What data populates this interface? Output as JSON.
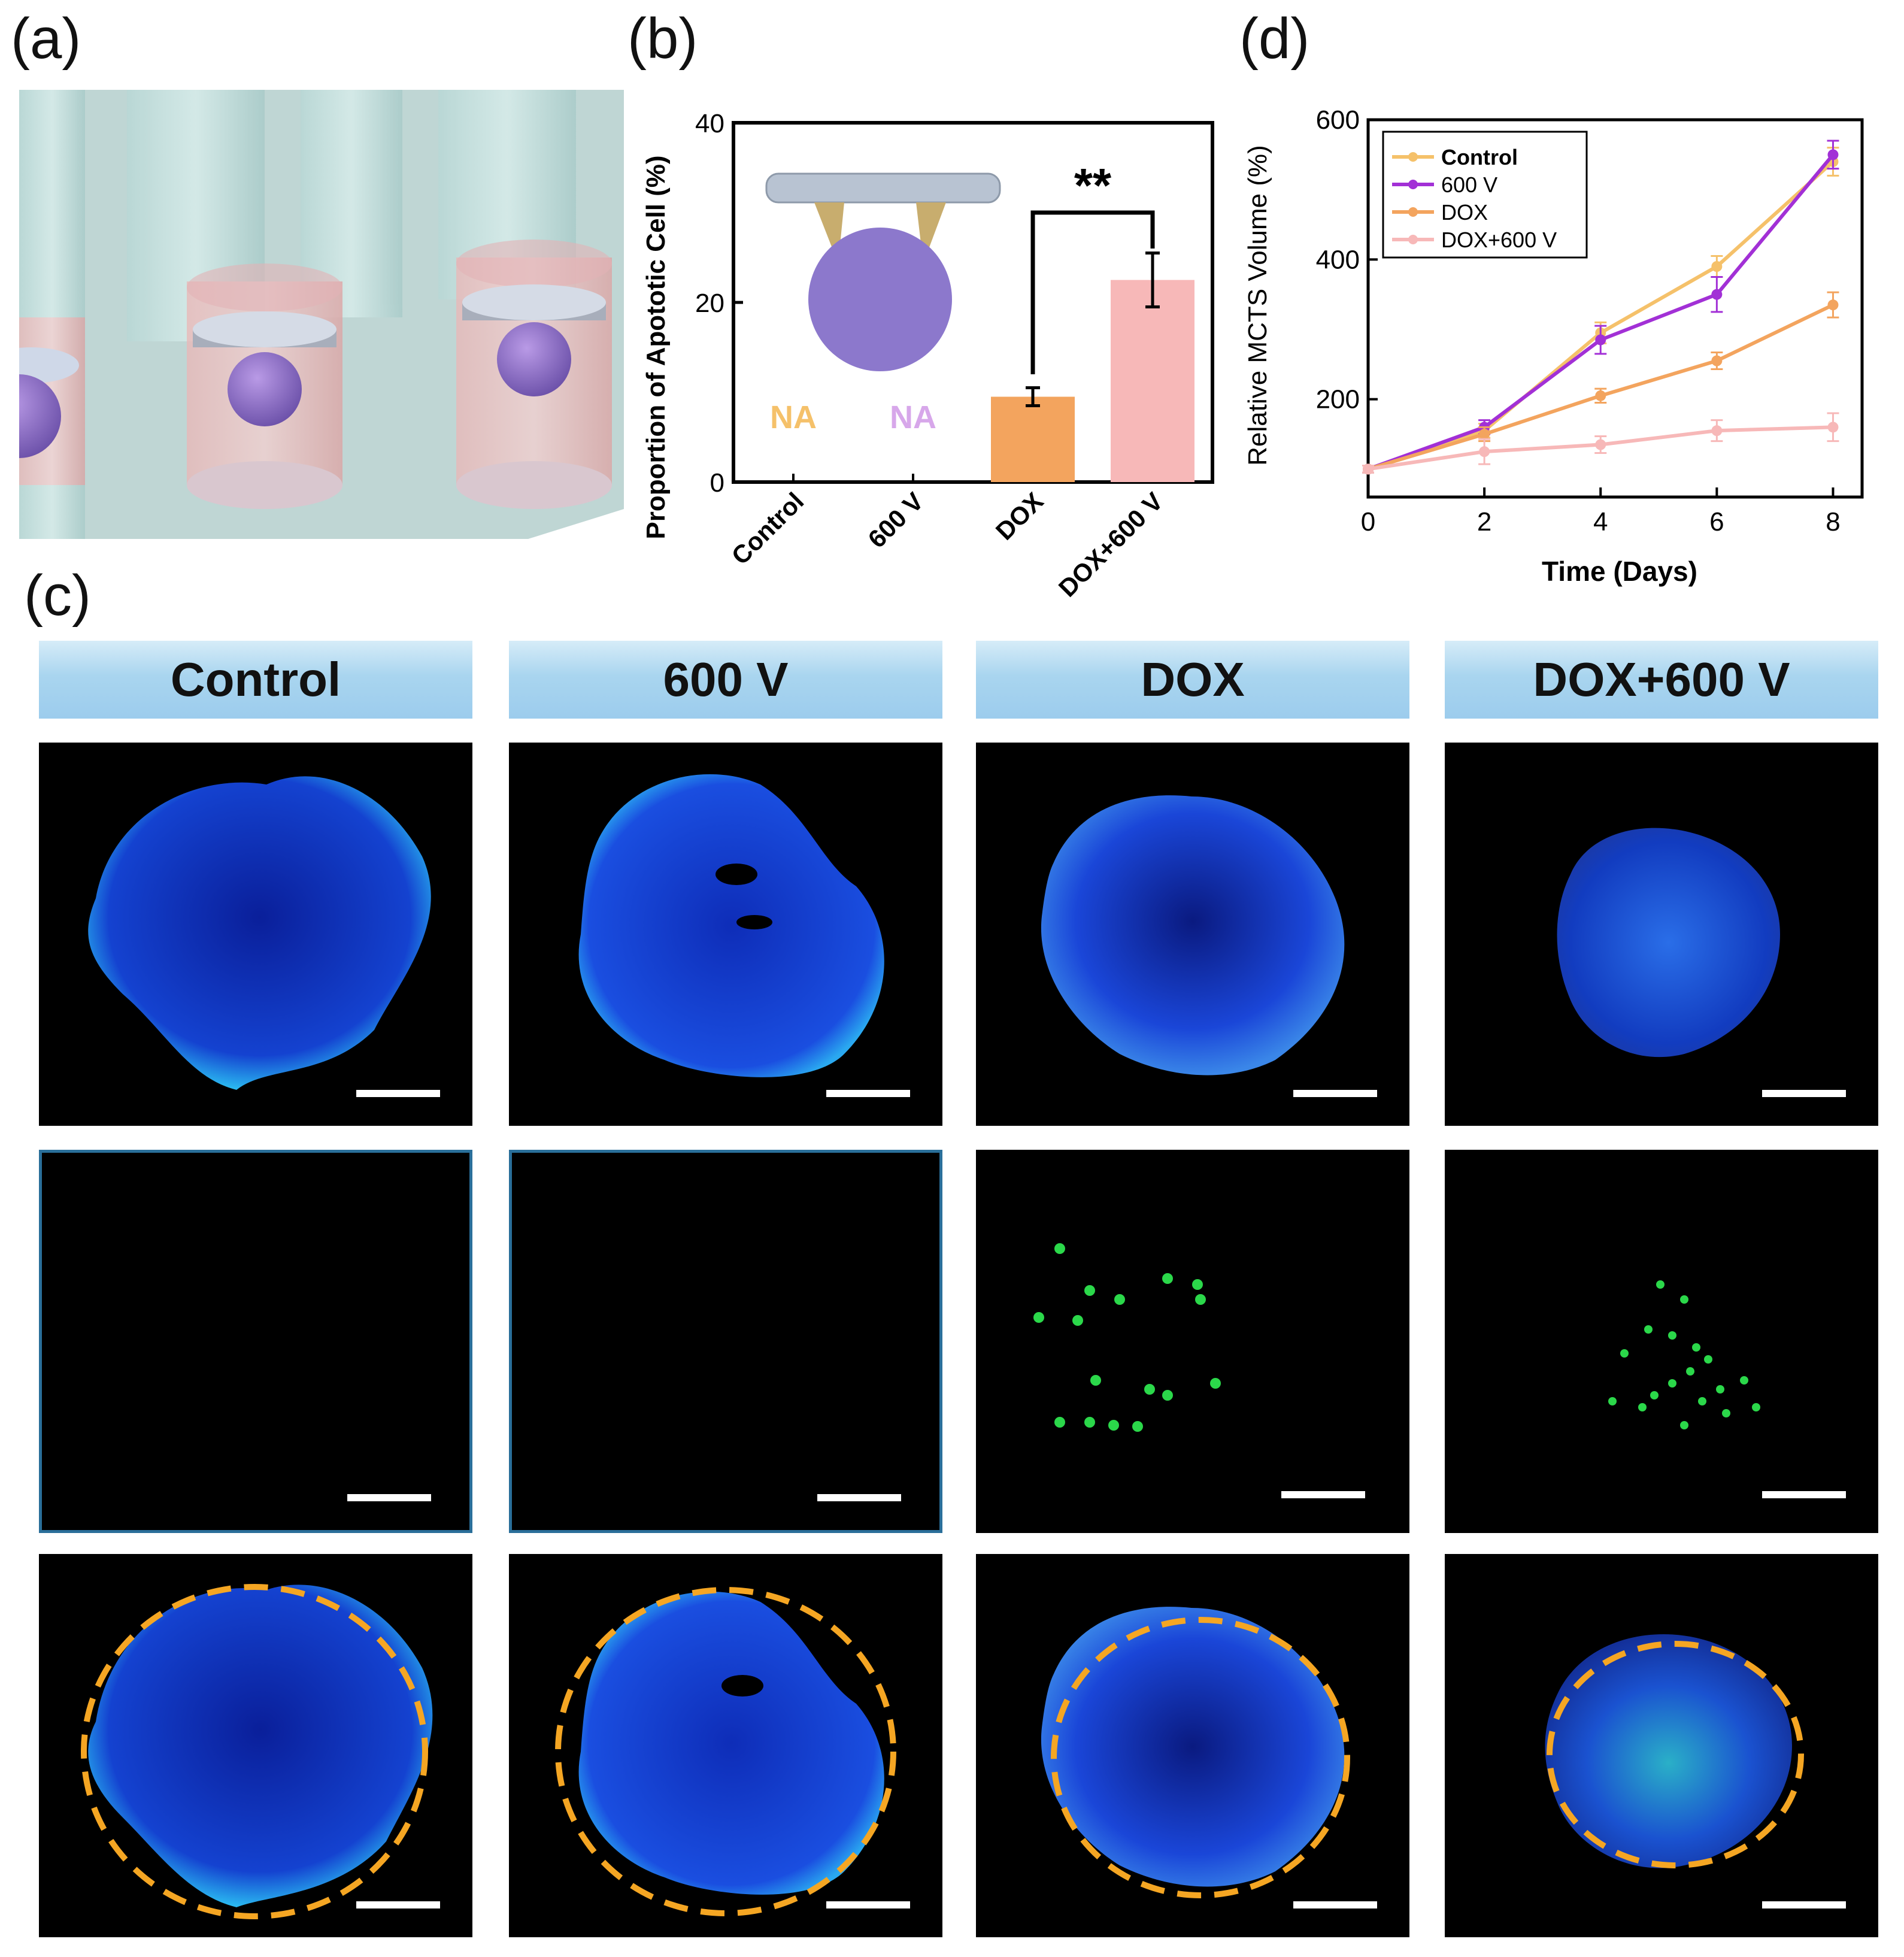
{
  "panels": {
    "a_label": "(a)",
    "b_label": "(b)",
    "c_label": "(c)",
    "d_label": "(d)"
  },
  "colors": {
    "control": "#f5c16a",
    "v600": "#a230d6",
    "dox": "#f3a45e",
    "dox600": "#f7b8b8",
    "na_control": "#f5c16a",
    "na_600": "#d7a7ea",
    "dashed_circle": "#f5a623"
  },
  "chart_data": [
    {
      "type": "bar",
      "panel": "b",
      "categories": [
        "Control",
        "600 V",
        "DOX",
        "DOX+600 V"
      ],
      "values": [
        null,
        null,
        9.5,
        22.5
      ],
      "errors": [
        null,
        null,
        1.0,
        3.0
      ],
      "na_labels": [
        "NA",
        "NA"
      ],
      "ylabel": "Proportion of Apototic Cell (%)",
      "ylim": [
        0,
        40
      ],
      "yticks": [
        "0",
        "20",
        "40"
      ],
      "significance": "**"
    },
    {
      "type": "line",
      "panel": "d",
      "x": [
        0,
        2,
        4,
        6,
        8
      ],
      "series": [
        {
          "name": "Control",
          "values": [
            100,
            155,
            295,
            390,
            540
          ],
          "errors": [
            5,
            10,
            15,
            15,
            20
          ]
        },
        {
          "name": "600 V",
          "values": [
            100,
            160,
            285,
            350,
            550
          ],
          "errors": [
            5,
            10,
            20,
            25,
            20
          ]
        },
        {
          "name": "DOX",
          "values": [
            100,
            150,
            205,
            255,
            335
          ],
          "errors": [
            5,
            10,
            10,
            12,
            18
          ]
        },
        {
          "name": "DOX+600 V",
          "values": [
            100,
            125,
            135,
            155,
            160
          ],
          "errors": [
            5,
            18,
            12,
            15,
            20
          ]
        }
      ],
      "xlabel": "Time (Days)",
      "ylabel": "Relative MCTS Volume (%)",
      "xlim": [
        0,
        8.5
      ],
      "ylim": [
        60,
        600
      ],
      "xticks": [
        "0",
        "2",
        "4",
        "6",
        "8"
      ],
      "yticks": [
        "200",
        "400",
        "600"
      ],
      "legend_position": "top-left"
    }
  ],
  "panel_c": {
    "headers": [
      "Control",
      "600 V",
      "DOX",
      "DOX+600 V"
    ]
  }
}
